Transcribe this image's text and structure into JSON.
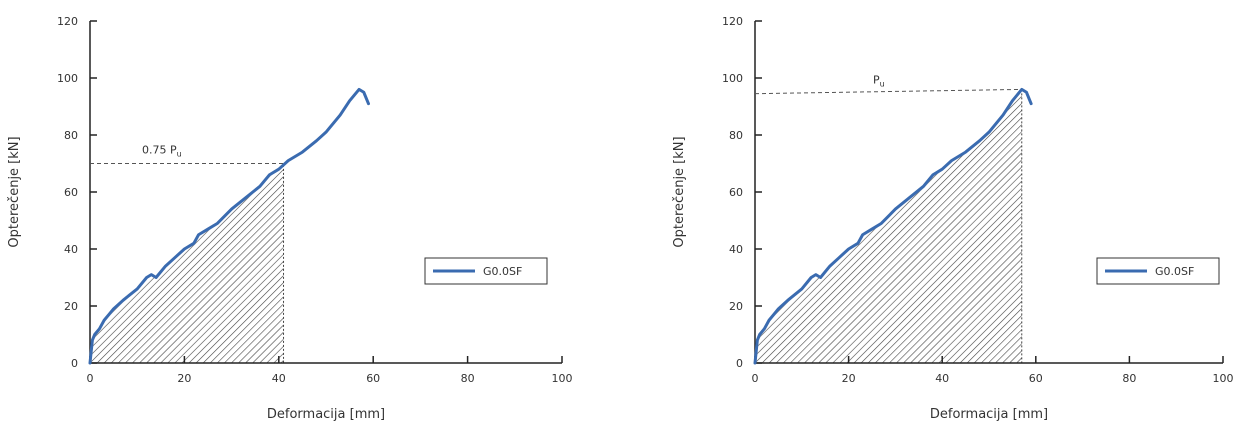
{
  "colors": {
    "series": "#3a6bb0",
    "axis": "#222222",
    "hatch": "#444444",
    "text": "#333333"
  },
  "chart_data": [
    {
      "type": "line",
      "xlabel": "Deformacija [mm]",
      "ylabel": "Opterečenje [kN]",
      "xlim": [
        0,
        100
      ],
      "ylim": [
        0,
        120
      ],
      "xticks": [
        0,
        20,
        40,
        60,
        80,
        100
      ],
      "yticks": [
        0,
        20,
        40,
        60,
        80,
        100,
        120
      ],
      "legend": {
        "position": "right",
        "entries": [
          "G0.0SF"
        ]
      },
      "series": [
        {
          "name": "G0.0SF",
          "x": [
            0,
            0.5,
            1,
            2,
            3,
            4,
            5,
            7,
            10,
            12,
            13,
            14,
            16,
            18,
            20,
            22,
            23,
            25,
            27,
            30,
            33,
            36,
            38,
            40,
            42,
            45,
            48,
            50,
            53,
            55,
            57,
            58,
            59
          ],
          "y": [
            0,
            8,
            10,
            12,
            15,
            17,
            19,
            22,
            26,
            30,
            31,
            30,
            34,
            37,
            40,
            42,
            45,
            47,
            49,
            54,
            58,
            62,
            66,
            68,
            71,
            74,
            78,
            81,
            87,
            92,
            96,
            95,
            91
          ]
        }
      ],
      "annotation": {
        "label": "0.75 P",
        "subscript": "u",
        "value_kN": 70,
        "deformation_mm": 41
      },
      "hatched_area": {
        "from_mm": 0,
        "to_mm": 41
      }
    },
    {
      "type": "line",
      "xlabel": "Deformacija [mm]",
      "ylabel": "Opterečenje [kN]",
      "xlim": [
        0,
        100
      ],
      "ylim": [
        0,
        120
      ],
      "xticks": [
        0,
        20,
        40,
        60,
        80,
        100
      ],
      "yticks": [
        0,
        20,
        40,
        60,
        80,
        100,
        120
      ],
      "legend": {
        "position": "right",
        "entries": [
          "G0.0SF"
        ]
      },
      "series": [
        {
          "name": "G0.0SF",
          "x": [
            0,
            0.5,
            1,
            2,
            3,
            4,
            5,
            7,
            10,
            12,
            13,
            14,
            16,
            18,
            20,
            22,
            23,
            25,
            27,
            30,
            33,
            36,
            38,
            40,
            42,
            45,
            48,
            50,
            53,
            55,
            57,
            58,
            59
          ],
          "y": [
            0,
            8,
            10,
            12,
            15,
            17,
            19,
            22,
            26,
            30,
            31,
            30,
            34,
            37,
            40,
            42,
            45,
            47,
            49,
            54,
            58,
            62,
            66,
            68,
            71,
            74,
            78,
            81,
            87,
            92,
            96,
            95,
            91
          ]
        }
      ],
      "annotation": {
        "label": "P",
        "subscript": "u",
        "value_kN": 94.5,
        "value_end_kN": 96,
        "deformation_mm": 57
      },
      "hatched_area": {
        "from_mm": 0,
        "to_mm": 57
      }
    }
  ]
}
